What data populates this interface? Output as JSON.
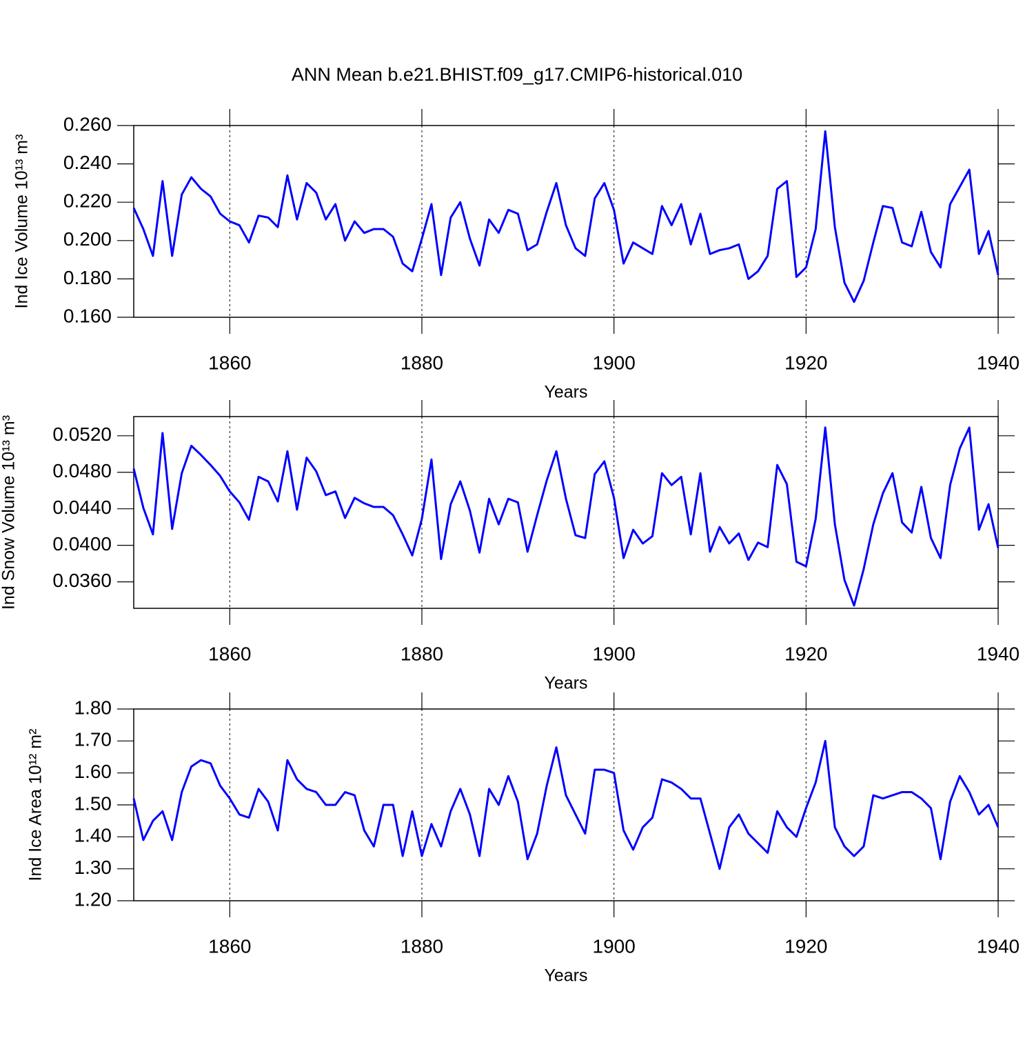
{
  "title": "ANN Mean b.e21.BHIST.f09_g17.CMIP6-historical.010",
  "chart_data": [
    {
      "type": "line",
      "ylabel": "Ind Ice Volume 10¹³ m³",
      "xlabel": "Years",
      "xlim": [
        1850,
        1940
      ],
      "xticks": [
        1860,
        1880,
        1900,
        1920,
        1940
      ],
      "ylim": [
        0.16,
        0.26
      ],
      "yticks": [
        {
          "value": 0.16,
          "label": "0.160"
        },
        {
          "value": 0.18,
          "label": "0.180"
        },
        {
          "value": 0.2,
          "label": "0.200"
        },
        {
          "value": 0.22,
          "label": "0.220"
        },
        {
          "value": 0.24,
          "label": "0.240"
        },
        {
          "value": 0.26,
          "label": "0.260"
        }
      ],
      "grid": true,
      "x": [
        1850,
        1851,
        1852,
        1853,
        1854,
        1855,
        1856,
        1857,
        1858,
        1859,
        1860,
        1861,
        1862,
        1863,
        1864,
        1865,
        1866,
        1867,
        1868,
        1869,
        1870,
        1871,
        1872,
        1873,
        1874,
        1875,
        1876,
        1877,
        1878,
        1879,
        1880,
        1881,
        1882,
        1883,
        1884,
        1885,
        1886,
        1887,
        1888,
        1889,
        1890,
        1891,
        1892,
        1893,
        1894,
        1895,
        1896,
        1897,
        1898,
        1899,
        1900,
        1901,
        1902,
        1903,
        1904,
        1905,
        1906,
        1907,
        1908,
        1909,
        1910,
        1911,
        1912,
        1913,
        1914,
        1915,
        1916,
        1917,
        1918,
        1919,
        1920,
        1921,
        1922,
        1923,
        1924,
        1925,
        1926,
        1927,
        1928,
        1929,
        1930,
        1931,
        1932,
        1933,
        1934,
        1935,
        1936,
        1937,
        1938,
        1939,
        1940
      ],
      "series": [
        {
          "color": "#0000ff",
          "values": [
            0.217,
            0.206,
            0.192,
            0.231,
            0.192,
            0.224,
            0.233,
            0.227,
            0.223,
            0.214,
            0.21,
            0.208,
            0.199,
            0.213,
            0.212,
            0.207,
            0.234,
            0.211,
            0.23,
            0.225,
            0.211,
            0.219,
            0.2,
            0.21,
            0.204,
            0.206,
            0.206,
            0.202,
            0.188,
            0.184,
            0.201,
            0.219,
            0.182,
            0.212,
            0.22,
            0.201,
            0.187,
            0.211,
            0.204,
            0.216,
            0.214,
            0.195,
            0.198,
            0.215,
            0.23,
            0.208,
            0.196,
            0.192,
            0.222,
            0.23,
            0.216,
            0.188,
            0.199,
            0.196,
            0.193,
            0.218,
            0.208,
            0.219,
            0.198,
            0.214,
            0.193,
            0.195,
            0.196,
            0.198,
            0.18,
            0.184,
            0.192,
            0.227,
            0.231,
            0.181,
            0.186,
            0.206,
            0.257,
            0.207,
            0.178,
            0.168,
            0.179,
            0.199,
            0.218,
            0.217,
            0.199,
            0.197,
            0.215,
            0.194,
            0.186,
            0.219,
            0.228,
            0.237,
            0.193,
            0.205,
            0.182
          ]
        }
      ]
    },
    {
      "type": "line",
      "ylabel": "Ind Snow Volume 10¹³ m³",
      "xlabel": "Years",
      "xlim": [
        1850,
        1940
      ],
      "xticks": [
        1860,
        1880,
        1900,
        1920,
        1940
      ],
      "ylim": [
        0.0331,
        0.0541
      ],
      "yticks": [
        {
          "value": 0.036,
          "label": "0.0360"
        },
        {
          "value": 0.04,
          "label": "0.0400"
        },
        {
          "value": 0.044,
          "label": "0.0440"
        },
        {
          "value": 0.048,
          "label": "0.0480"
        },
        {
          "value": 0.052,
          "label": "0.0520"
        }
      ],
      "grid": true,
      "x": [
        1850,
        1851,
        1852,
        1853,
        1854,
        1855,
        1856,
        1857,
        1858,
        1859,
        1860,
        1861,
        1862,
        1863,
        1864,
        1865,
        1866,
        1867,
        1868,
        1869,
        1870,
        1871,
        1872,
        1873,
        1874,
        1875,
        1876,
        1877,
        1878,
        1879,
        1880,
        1881,
        1882,
        1883,
        1884,
        1885,
        1886,
        1887,
        1888,
        1889,
        1890,
        1891,
        1892,
        1893,
        1894,
        1895,
        1896,
        1897,
        1898,
        1899,
        1900,
        1901,
        1902,
        1903,
        1904,
        1905,
        1906,
        1907,
        1908,
        1909,
        1910,
        1911,
        1912,
        1913,
        1914,
        1915,
        1916,
        1917,
        1918,
        1919,
        1920,
        1921,
        1922,
        1923,
        1924,
        1925,
        1926,
        1927,
        1928,
        1929,
        1930,
        1931,
        1932,
        1933,
        1934,
        1935,
        1936,
        1937,
        1938,
        1939,
        1940
      ],
      "series": [
        {
          "color": "#0000ff",
          "values": [
            0.0484,
            0.0441,
            0.0412,
            0.0523,
            0.0418,
            0.0479,
            0.0509,
            0.0499,
            0.0488,
            0.0476,
            0.0459,
            0.0447,
            0.0428,
            0.0475,
            0.047,
            0.0448,
            0.0503,
            0.0439,
            0.0496,
            0.0481,
            0.0455,
            0.0459,
            0.043,
            0.0452,
            0.0446,
            0.0442,
            0.0442,
            0.0433,
            0.0412,
            0.0389,
            0.0429,
            0.0494,
            0.0385,
            0.0445,
            0.047,
            0.0438,
            0.0392,
            0.0451,
            0.0423,
            0.0451,
            0.0447,
            0.0393,
            0.0433,
            0.0471,
            0.0503,
            0.0451,
            0.0411,
            0.0408,
            0.0478,
            0.0492,
            0.0452,
            0.0386,
            0.0417,
            0.0402,
            0.041,
            0.0479,
            0.0466,
            0.0475,
            0.0412,
            0.0479,
            0.0393,
            0.042,
            0.0402,
            0.0413,
            0.0384,
            0.0403,
            0.0398,
            0.0488,
            0.0467,
            0.0382,
            0.0377,
            0.0429,
            0.0529,
            0.0423,
            0.0362,
            0.0334,
            0.0374,
            0.0423,
            0.0457,
            0.0479,
            0.0425,
            0.0414,
            0.0464,
            0.0408,
            0.0386,
            0.0466,
            0.0506,
            0.0529,
            0.0417,
            0.0445,
            0.0397
          ]
        }
      ]
    },
    {
      "type": "line",
      "ylabel": "Ind Ice Area 10¹² m²",
      "xlabel": "Years",
      "xlim": [
        1850,
        1940
      ],
      "xticks": [
        1860,
        1880,
        1900,
        1920,
        1940
      ],
      "ylim": [
        1.2,
        1.8
      ],
      "yticks": [
        {
          "value": 1.2,
          "label": "1.20"
        },
        {
          "value": 1.3,
          "label": "1.30"
        },
        {
          "value": 1.4,
          "label": "1.40"
        },
        {
          "value": 1.5,
          "label": "1.50"
        },
        {
          "value": 1.6,
          "label": "1.60"
        },
        {
          "value": 1.7,
          "label": "1.70"
        },
        {
          "value": 1.8,
          "label": "1.80"
        }
      ],
      "grid": true,
      "x": [
        1850,
        1851,
        1852,
        1853,
        1854,
        1855,
        1856,
        1857,
        1858,
        1859,
        1860,
        1861,
        1862,
        1863,
        1864,
        1865,
        1866,
        1867,
        1868,
        1869,
        1870,
        1871,
        1872,
        1873,
        1874,
        1875,
        1876,
        1877,
        1878,
        1879,
        1880,
        1881,
        1882,
        1883,
        1884,
        1885,
        1886,
        1887,
        1888,
        1889,
        1890,
        1891,
        1892,
        1893,
        1894,
        1895,
        1896,
        1897,
        1898,
        1899,
        1900,
        1901,
        1902,
        1903,
        1904,
        1905,
        1906,
        1907,
        1908,
        1909,
        1910,
        1911,
        1912,
        1913,
        1914,
        1915,
        1916,
        1917,
        1918,
        1919,
        1920,
        1921,
        1922,
        1923,
        1924,
        1925,
        1926,
        1927,
        1928,
        1929,
        1930,
        1931,
        1932,
        1933,
        1934,
        1935,
        1936,
        1937,
        1938,
        1939,
        1940
      ],
      "series": [
        {
          "color": "#0000ff",
          "values": [
            1.52,
            1.39,
            1.45,
            1.48,
            1.39,
            1.54,
            1.62,
            1.64,
            1.63,
            1.56,
            1.52,
            1.47,
            1.46,
            1.55,
            1.51,
            1.42,
            1.64,
            1.58,
            1.55,
            1.54,
            1.5,
            1.5,
            1.54,
            1.53,
            1.42,
            1.37,
            1.5,
            1.5,
            1.34,
            1.48,
            1.34,
            1.44,
            1.37,
            1.48,
            1.55,
            1.47,
            1.34,
            1.55,
            1.5,
            1.59,
            1.51,
            1.33,
            1.41,
            1.56,
            1.68,
            1.53,
            1.47,
            1.41,
            1.61,
            1.61,
            1.6,
            1.42,
            1.36,
            1.43,
            1.46,
            1.58,
            1.57,
            1.55,
            1.52,
            1.52,
            1.41,
            1.3,
            1.43,
            1.47,
            1.41,
            1.38,
            1.35,
            1.48,
            1.43,
            1.4,
            1.49,
            1.57,
            1.7,
            1.43,
            1.37,
            1.34,
            1.37,
            1.53,
            1.52,
            1.53,
            1.54,
            1.54,
            1.52,
            1.49,
            1.33,
            1.51,
            1.59,
            1.54,
            1.47,
            1.5,
            1.43
          ]
        }
      ]
    }
  ]
}
